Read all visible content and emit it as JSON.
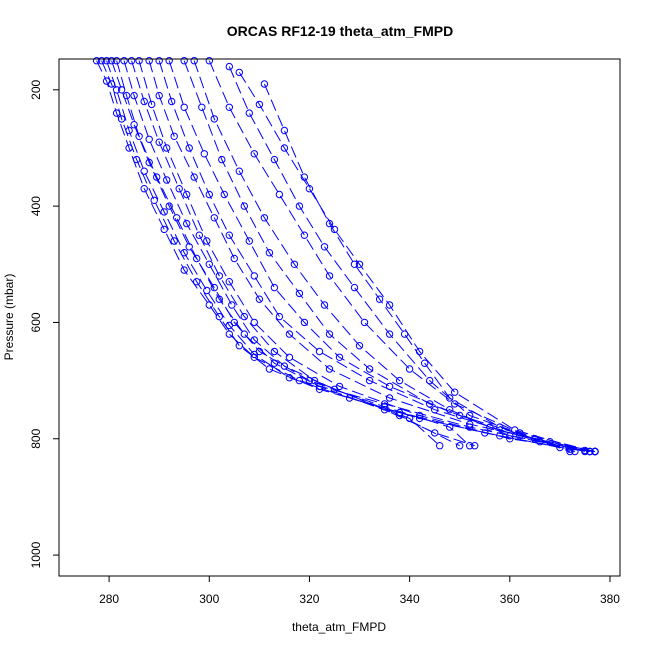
{
  "chart_data": {
    "type": "line",
    "title": "ORCAS RF12-19 theta_atm_FMPD",
    "xlabel": "theta_atm_FMPD",
    "ylabel": "Pressure (mbar)",
    "xlim": [
      270,
      382
    ],
    "ylim": [
      1036,
      147
    ],
    "y_reversed": true,
    "x_ticks": [
      280,
      300,
      320,
      340,
      360,
      380
    ],
    "y_ticks": [
      200,
      400,
      600,
      800,
      1000
    ],
    "grid": false,
    "legend": "none",
    "line_style": "long-dash with open circle markers",
    "color": "#0000ff",
    "series": [
      {
        "values": [
          [
            277.5,
            150
          ],
          [
            279.5,
            185
          ],
          [
            281.5,
            240
          ],
          [
            284,
            300
          ],
          [
            287,
            370
          ],
          [
            291,
            440
          ],
          [
            295,
            510
          ],
          [
            300,
            570
          ],
          [
            304,
            620
          ],
          [
            309,
            660
          ],
          [
            318,
            700
          ],
          [
            335,
            740
          ],
          [
            352,
            780
          ],
          [
            366,
            805
          ],
          [
            375,
            820
          ]
        ]
      },
      {
        "values": [
          [
            278.5,
            150
          ],
          [
            280.5,
            190
          ],
          [
            282.5,
            250
          ],
          [
            285.5,
            320
          ],
          [
            289,
            390
          ],
          [
            293,
            460
          ],
          [
            297.5,
            530
          ],
          [
            302,
            590
          ],
          [
            306,
            640
          ],
          [
            312,
            680
          ],
          [
            322,
            715
          ],
          [
            338,
            755
          ],
          [
            355,
            790
          ],
          [
            370,
            815
          ],
          [
            377,
            822
          ]
        ]
      },
      {
        "values": [
          [
            279.5,
            150
          ],
          [
            281.5,
            200
          ],
          [
            284,
            270
          ],
          [
            287,
            340
          ],
          [
            291,
            410
          ],
          [
            295,
            480
          ],
          [
            299.5,
            545
          ],
          [
            304,
            605
          ],
          [
            309,
            655
          ],
          [
            316,
            695
          ],
          [
            328,
            730
          ],
          [
            342,
            765
          ],
          [
            358,
            795
          ],
          [
            372,
            818
          ],
          [
            377,
            822
          ]
        ]
      },
      {
        "values": [
          [
            280.5,
            150
          ],
          [
            282.5,
            200
          ],
          [
            285,
            260
          ],
          [
            288,
            325
          ],
          [
            292,
            400
          ],
          [
            296,
            470
          ],
          [
            301,
            540
          ],
          [
            305,
            600
          ],
          [
            310,
            650
          ],
          [
            320,
            700
          ],
          [
            335,
            745
          ],
          [
            348,
            780
          ],
          [
            352,
            812
          ]
        ]
      },
      {
        "values": [
          [
            281.5,
            150
          ],
          [
            283.5,
            210
          ],
          [
            286,
            280
          ],
          [
            289.5,
            350
          ],
          [
            293.5,
            420
          ],
          [
            297.5,
            490
          ],
          [
            302,
            560
          ],
          [
            307,
            620
          ],
          [
            313,
            670
          ],
          [
            322,
            710
          ],
          [
            338,
            760
          ],
          [
            350,
            812
          ]
        ]
      },
      {
        "values": [
          [
            283,
            150
          ],
          [
            285,
            210
          ],
          [
            288,
            285
          ],
          [
            291.5,
            355
          ],
          [
            295.5,
            430
          ],
          [
            300,
            500
          ],
          [
            304.5,
            570
          ],
          [
            309,
            630
          ],
          [
            315,
            675
          ],
          [
            325,
            715
          ],
          [
            340,
            765
          ],
          [
            346,
            812
          ]
        ]
      },
      {
        "values": [
          [
            284.5,
            150
          ],
          [
            287,
            220
          ],
          [
            290,
            290
          ],
          [
            294,
            370
          ],
          [
            298,
            450
          ],
          [
            302,
            520
          ],
          [
            307,
            590
          ],
          [
            313,
            650
          ],
          [
            321,
            700
          ],
          [
            335,
            750
          ],
          [
            345,
            790
          ],
          [
            353,
            812
          ]
        ]
      },
      {
        "values": [
          [
            286,
            150
          ],
          [
            288.5,
            225
          ],
          [
            291.5,
            300
          ],
          [
            295.5,
            380
          ],
          [
            299.5,
            460
          ],
          [
            304,
            530
          ],
          [
            309,
            600
          ],
          [
            316,
            660
          ],
          [
            326,
            710
          ],
          [
            342,
            760
          ],
          [
            360,
            800
          ],
          [
            377,
            822
          ]
        ]
      },
      {
        "values": [
          [
            288,
            150
          ],
          [
            290,
            210
          ],
          [
            293,
            280
          ],
          [
            297,
            350
          ],
          [
            301,
            420
          ],
          [
            305,
            490
          ],
          [
            310,
            560
          ],
          [
            316,
            620
          ],
          [
            324,
            680
          ],
          [
            336,
            730
          ],
          [
            352,
            775
          ],
          [
            368,
            805
          ],
          [
            376,
            822
          ]
        ]
      },
      {
        "values": [
          [
            290,
            150
          ],
          [
            292.5,
            220
          ],
          [
            296,
            300
          ],
          [
            300,
            380
          ],
          [
            304,
            450
          ],
          [
            309,
            520
          ],
          [
            314,
            590
          ],
          [
            322,
            650
          ],
          [
            332,
            700
          ],
          [
            345,
            750
          ],
          [
            362,
            795
          ],
          [
            375,
            822
          ]
        ]
      },
      {
        "values": [
          [
            292,
            150
          ],
          [
            295,
            230
          ],
          [
            299,
            310
          ],
          [
            303,
            380
          ],
          [
            308,
            460
          ],
          [
            313,
            540
          ],
          [
            319,
            600
          ],
          [
            326,
            660
          ],
          [
            336,
            710
          ],
          [
            350,
            760
          ],
          [
            365,
            800
          ],
          [
            377,
            822
          ]
        ]
      },
      {
        "values": [
          [
            295,
            150
          ],
          [
            298.5,
            230
          ],
          [
            302.5,
            320
          ],
          [
            307,
            400
          ],
          [
            312,
            480
          ],
          [
            318,
            550
          ],
          [
            324,
            620
          ],
          [
            332,
            680
          ],
          [
            344,
            740
          ],
          [
            356,
            780
          ],
          [
            373,
            822
          ]
        ]
      },
      {
        "values": [
          [
            297,
            150
          ],
          [
            301,
            250
          ],
          [
            306,
            340
          ],
          [
            311,
            420
          ],
          [
            317,
            500
          ],
          [
            323,
            570
          ],
          [
            330,
            640
          ],
          [
            338,
            700
          ],
          [
            348,
            750
          ],
          [
            360,
            795
          ],
          [
            376,
            822
          ]
        ]
      },
      {
        "values": [
          [
            300,
            150
          ],
          [
            304,
            230
          ],
          [
            309,
            310
          ],
          [
            314,
            380
          ],
          [
            319,
            450
          ],
          [
            324,
            520
          ],
          [
            331,
            600
          ],
          [
            340,
            680
          ],
          [
            349,
            740
          ],
          [
            362,
            790
          ],
          [
            377,
            822
          ]
        ]
      },
      {
        "values": [
          [
            304,
            160
          ],
          [
            308,
            240
          ],
          [
            313,
            320
          ],
          [
            318,
            400
          ],
          [
            323,
            470
          ],
          [
            329,
            540
          ],
          [
            336,
            620
          ],
          [
            344,
            700
          ],
          [
            352,
            760
          ],
          [
            365,
            800
          ],
          [
            377,
            822
          ]
        ]
      },
      {
        "values": [
          [
            306,
            170
          ],
          [
            310,
            225
          ],
          [
            315,
            300
          ],
          [
            320,
            370
          ],
          [
            325,
            440
          ],
          [
            330,
            500
          ],
          [
            336,
            570
          ],
          [
            342,
            650
          ],
          [
            349,
            720
          ],
          [
            361,
            785
          ],
          [
            376,
            822
          ]
        ]
      },
      {
        "values": [
          [
            311,
            190
          ],
          [
            315,
            270
          ],
          [
            319,
            350
          ],
          [
            324,
            430
          ],
          [
            329,
            500
          ],
          [
            334,
            560
          ],
          [
            339,
            620
          ],
          [
            343,
            670
          ],
          [
            348,
            730
          ],
          [
            358,
            780
          ],
          [
            372,
            822
          ]
        ]
      }
    ]
  }
}
